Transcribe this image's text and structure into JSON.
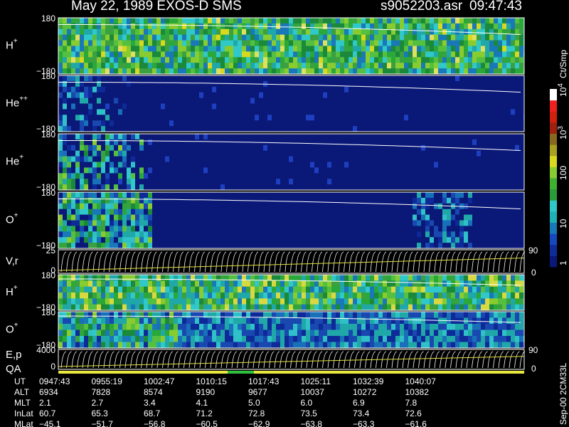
{
  "header": {
    "title": "May 22, 1989   EXOS-D SMS",
    "file": "s9052203.asr",
    "time": "09:47:43"
  },
  "panels": [
    {
      "label": "H",
      "sup": "+",
      "top": "180",
      "bottom": "−180"
    },
    {
      "label": "He",
      "sup": "++",
      "top": "180",
      "bottom": "−180"
    },
    {
      "label": "He",
      "sup": "+",
      "top": "180",
      "bottom": "−180"
    },
    {
      "label": "O",
      "sup": "+",
      "top": "180",
      "bottom": "−180"
    },
    {
      "label": "V,r",
      "top": "25",
      "bottom": "0",
      "right_top": "90",
      "right_bottom": "0"
    },
    {
      "label": "H",
      "sup": "+",
      "top": "180",
      "bottom": "−180"
    },
    {
      "label": "O",
      "sup": "+",
      "top": "180",
      "bottom": "−180"
    },
    {
      "label": "E,p",
      "label2": "QA",
      "top": "4000",
      "bottom": "0",
      "right_top": "90",
      "right_bottom": "0"
    }
  ],
  "colorbar": {
    "unit": "Ct/Smp",
    "ticks": [
      {
        "base": "10",
        "exp": "4"
      },
      {
        "base": "10",
        "exp": "3"
      },
      {
        "base": "100"
      },
      {
        "base": "10"
      },
      {
        "base": "1"
      }
    ]
  },
  "table": {
    "rows": [
      [
        "UT",
        "0947:43",
        "0955:19",
        "1002:47",
        "1010:15",
        "1017:43",
        "1025:11",
        "1032:39",
        "1040:07"
      ],
      [
        "ALT",
        "6934",
        "7828",
        "8574",
        "9190",
        "9677",
        "10037",
        "10272",
        "10382"
      ],
      [
        "MLT",
        "2.1",
        "2.7",
        "3.4",
        "4.1",
        "5.0",
        "6.0",
        "6.9",
        "7.8"
      ],
      [
        "InLat",
        "60.7",
        "65.3",
        "68.7",
        "71.2",
        "72.8",
        "73.5",
        "73.4",
        "72.6"
      ],
      [
        "MLat",
        "−45.1",
        "−51.7",
        "−56.8",
        "−60.5",
        "−62.9",
        "−63.8",
        "−63.3",
        "−61.6"
      ]
    ]
  },
  "footer": "Sep-00 2CM33L"
}
